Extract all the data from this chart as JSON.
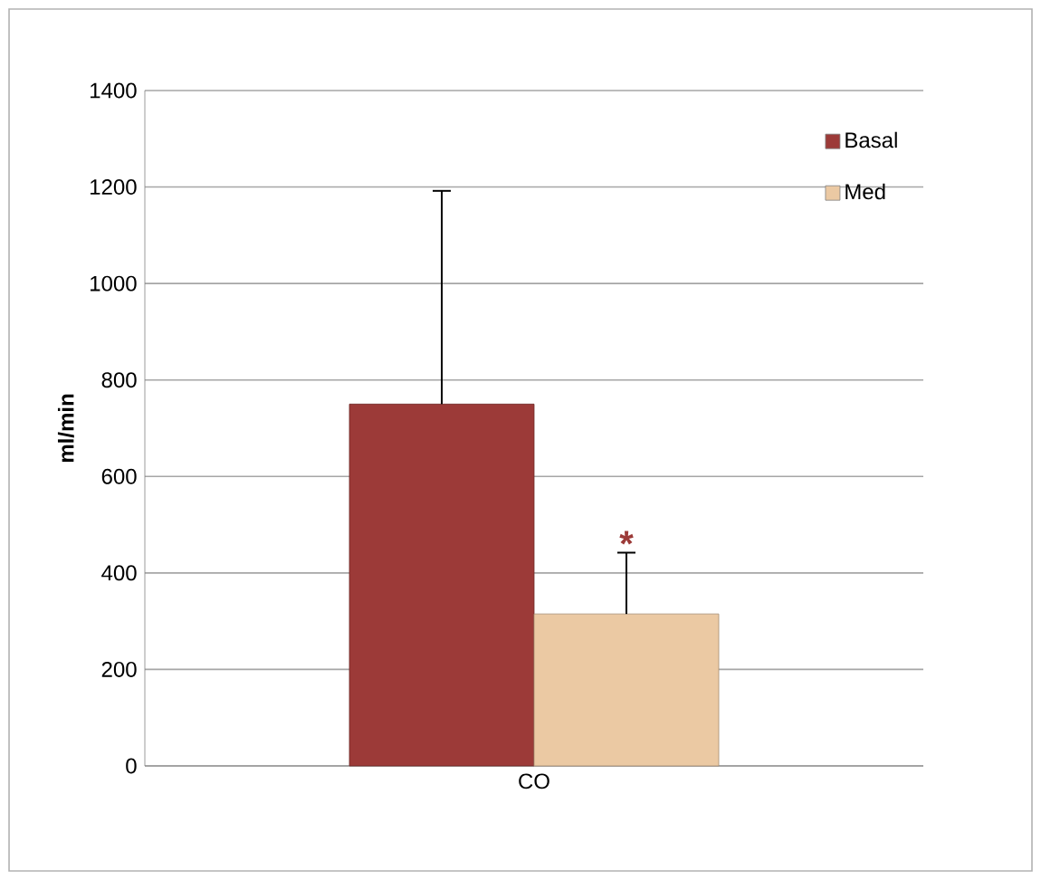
{
  "chart_data": {
    "type": "bar",
    "ylabel": "ml/min",
    "categories": [
      "CO"
    ],
    "series": [
      {
        "name": "Basal",
        "color": "#9c3a38",
        "values": [
          750
        ],
        "errors": [
          442
        ]
      },
      {
        "name": "Med",
        "color": "#ebc9a3",
        "values": [
          315
        ],
        "errors": [
          127
        ]
      }
    ],
    "annotations": [
      "*"
    ],
    "ylim": [
      0,
      1400
    ],
    "yticks": [
      0,
      200,
      400,
      600,
      800,
      1000,
      1200,
      1400
    ],
    "grid": "y",
    "legend": "top right"
  }
}
